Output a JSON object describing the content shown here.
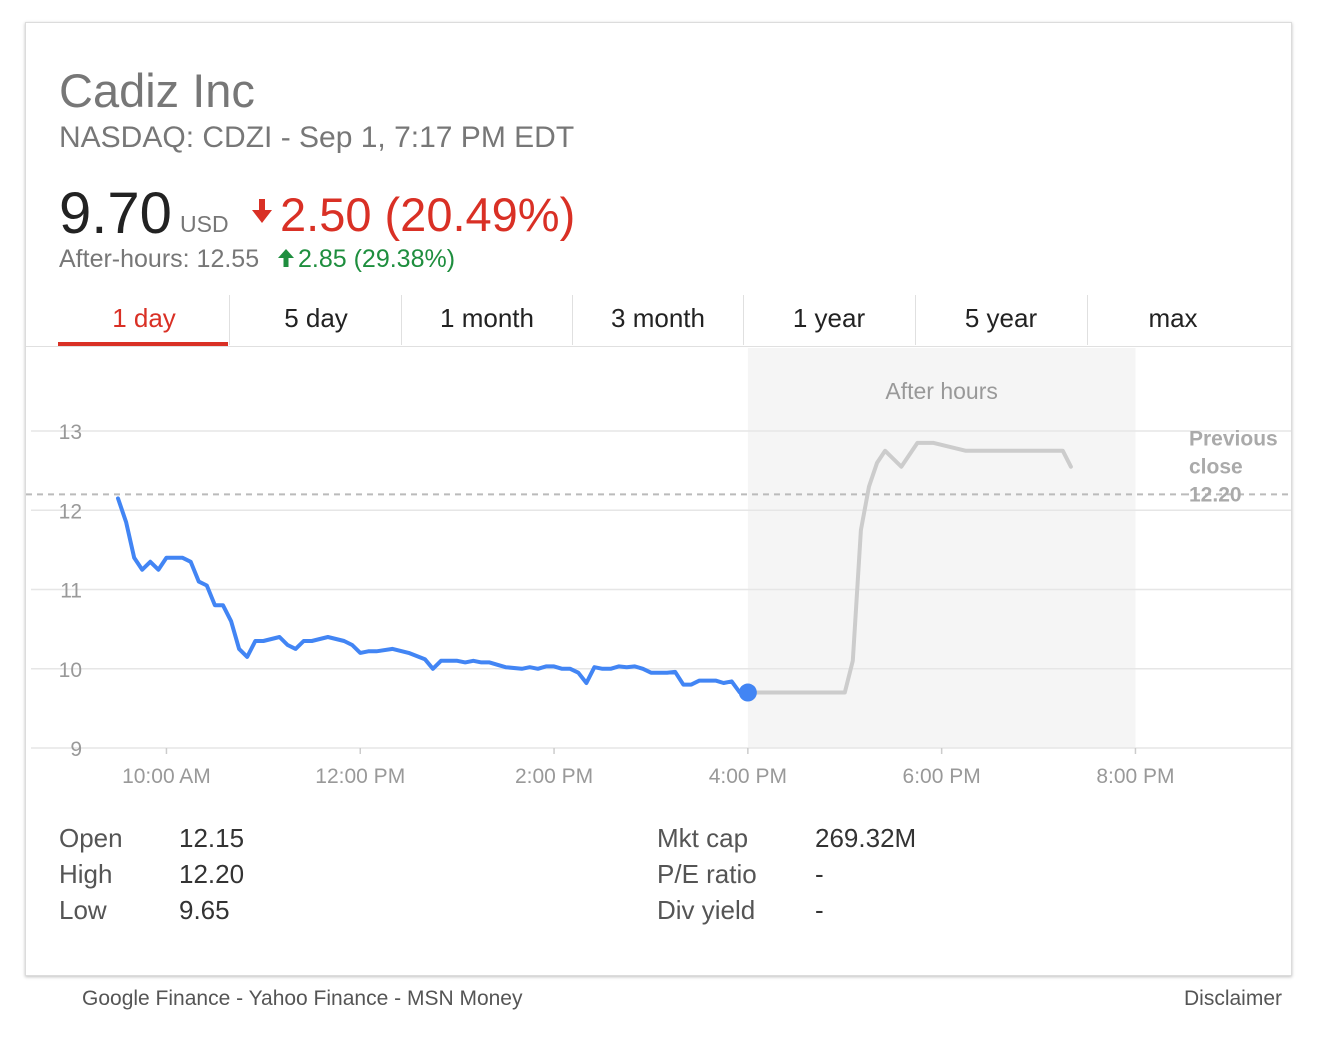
{
  "header": {
    "title": "Cadiz Inc",
    "subtitle": "NASDAQ: CDZI - Sep 1, 7:17 PM EDT",
    "price": "9.70",
    "currency": "USD",
    "change": "2.50 (20.49%)",
    "after_hours_label": "After-hours: 12.55",
    "after_hours_change": "2.85 (29.38%)"
  },
  "tabs": [
    {
      "label": "1 day"
    },
    {
      "label": "5 day"
    },
    {
      "label": "1 month"
    },
    {
      "label": "3 month"
    },
    {
      "label": "1 year"
    },
    {
      "label": "5 year"
    },
    {
      "label": "max"
    }
  ],
  "colors": {
    "accent_red": "#d93025",
    "green": "#1e8e3e",
    "line_blue": "#4285f4",
    "after_hours_gray": "#cccccc"
  },
  "chart_data": {
    "type": "line",
    "ylim": [
      9,
      13
    ],
    "y_ticks": [
      "13",
      "12",
      "11",
      "10",
      "9"
    ],
    "x_ticks": [
      "10:00 AM",
      "12:00 PM",
      "2:00 PM",
      "4:00 PM",
      "6:00 PM",
      "8:00 PM"
    ],
    "after_hours_label": "After hours",
    "previous_close": {
      "value": 12.2,
      "label_lines": [
        "Previous",
        "close",
        "12.20"
      ]
    },
    "series": [
      {
        "style": "regular",
        "points": [
          [
            "9:30 AM",
            12.15
          ],
          [
            "9:35 AM",
            11.85
          ],
          [
            "9:40 AM",
            11.4
          ],
          [
            "9:45 AM",
            11.25
          ],
          [
            "9:50 AM",
            11.35
          ],
          [
            "9:55 AM",
            11.25
          ],
          [
            "10:00 AM",
            11.4
          ],
          [
            "10:10 AM",
            11.4
          ],
          [
            "10:15 AM",
            11.35
          ],
          [
            "10:20 AM",
            11.1
          ],
          [
            "10:25 AM",
            11.05
          ],
          [
            "10:30 AM",
            10.8
          ],
          [
            "10:35 AM",
            10.8
          ],
          [
            "10:40 AM",
            10.6
          ],
          [
            "10:45 AM",
            10.25
          ],
          [
            "10:50 AM",
            10.15
          ],
          [
            "10:55 AM",
            10.35
          ],
          [
            "11:00 AM",
            10.35
          ],
          [
            "11:10 AM",
            10.4
          ],
          [
            "11:15 AM",
            10.3
          ],
          [
            "11:20 AM",
            10.25
          ],
          [
            "11:25 AM",
            10.35
          ],
          [
            "11:30 AM",
            10.35
          ],
          [
            "11:40 AM",
            10.4
          ],
          [
            "11:50 AM",
            10.35
          ],
          [
            "11:55 AM",
            10.3
          ],
          [
            "12:00 PM",
            10.2
          ],
          [
            "12:05 PM",
            10.22
          ],
          [
            "12:10 PM",
            10.22
          ],
          [
            "12:20 PM",
            10.25
          ],
          [
            "12:30 PM",
            10.2
          ],
          [
            "12:40 PM",
            10.12
          ],
          [
            "12:45 PM",
            10.0
          ],
          [
            "12:50 PM",
            10.1
          ],
          [
            "1:00 PM",
            10.1
          ],
          [
            "1:05 PM",
            10.08
          ],
          [
            "1:10 PM",
            10.1
          ],
          [
            "1:15 PM",
            10.08
          ],
          [
            "1:20 PM",
            10.08
          ],
          [
            "1:25 PM",
            10.05
          ],
          [
            "1:30 PM",
            10.02
          ],
          [
            "1:40 PM",
            10.0
          ],
          [
            "1:45 PM",
            10.02
          ],
          [
            "1:50 PM",
            10.0
          ],
          [
            "1:55 PM",
            10.03
          ],
          [
            "2:00 PM",
            10.03
          ],
          [
            "2:05 PM",
            10.0
          ],
          [
            "2:10 PM",
            10.0
          ],
          [
            "2:15 PM",
            9.95
          ],
          [
            "2:20 PM",
            9.82
          ],
          [
            "2:25 PM",
            10.02
          ],
          [
            "2:30 PM",
            10.0
          ],
          [
            "2:35 PM",
            10.0
          ],
          [
            "2:40 PM",
            10.03
          ],
          [
            "2:45 PM",
            10.02
          ],
          [
            "2:50 PM",
            10.03
          ],
          [
            "2:55 PM",
            10.0
          ],
          [
            "3:00 PM",
            9.95
          ],
          [
            "3:05 PM",
            9.95
          ],
          [
            "3:10 PM",
            9.95
          ],
          [
            "3:15 PM",
            9.96
          ],
          [
            "3:20 PM",
            9.8
          ],
          [
            "3:25 PM",
            9.8
          ],
          [
            "3:30 PM",
            9.85
          ],
          [
            "3:35 PM",
            9.85
          ],
          [
            "3:40 PM",
            9.85
          ],
          [
            "3:45 PM",
            9.82
          ],
          [
            "3:50 PM",
            9.84
          ],
          [
            "3:55 PM",
            9.7
          ],
          [
            "4:00 PM",
            9.7
          ]
        ]
      },
      {
        "style": "after_hours",
        "points": [
          [
            "4:00 PM",
            9.7
          ],
          [
            "5:00 PM",
            9.7
          ],
          [
            "5:05 PM",
            10.1
          ],
          [
            "5:10 PM",
            11.75
          ],
          [
            "5:15 PM",
            12.3
          ],
          [
            "5:20 PM",
            12.6
          ],
          [
            "5:25 PM",
            12.75
          ],
          [
            "5:35 PM",
            12.55
          ],
          [
            "5:45 PM",
            12.85
          ],
          [
            "5:55 PM",
            12.85
          ],
          [
            "6:15 PM",
            12.75
          ],
          [
            "6:45 PM",
            12.75
          ],
          [
            "7:15 PM",
            12.75
          ],
          [
            "7:20 PM",
            12.55
          ]
        ]
      }
    ],
    "end_marker": {
      "time": "4:00 PM",
      "value": 9.7
    }
  },
  "stats": {
    "left": [
      {
        "label": "Open",
        "value": "12.15"
      },
      {
        "label": "High",
        "value": "12.20"
      },
      {
        "label": "Low",
        "value": "9.65"
      }
    ],
    "right": [
      {
        "label": "Mkt cap",
        "value": "269.32M"
      },
      {
        "label": "P/E ratio",
        "value": "-"
      },
      {
        "label": "Div yield",
        "value": "-"
      }
    ]
  },
  "footer": {
    "links": [
      "Google Finance",
      "Yahoo Finance",
      "MSN Money"
    ],
    "separator": " - ",
    "disclaimer": "Disclaimer"
  }
}
